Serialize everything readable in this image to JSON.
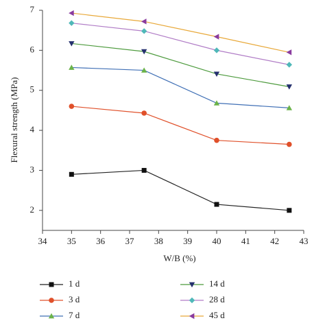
{
  "chart_data": {
    "type": "line",
    "x_label": "W/B (%)",
    "y_label": "Flexural strength (MPa)",
    "x": [
      35,
      37.5,
      40,
      42.5
    ],
    "xlim": [
      34,
      43
    ],
    "xticks": [
      34,
      35,
      36,
      37,
      38,
      39,
      40,
      41,
      42,
      43
    ],
    "ylim": [
      1.5,
      7
    ],
    "yticks": [
      2,
      3,
      4,
      5,
      6,
      7
    ],
    "series": [
      {
        "name": "1 d",
        "color": "#222222",
        "marker_color": "#111111",
        "marker": "square",
        "values": [
          2.9,
          3.0,
          2.15,
          2.0
        ]
      },
      {
        "name": "3 d",
        "color": "#e0502a",
        "marker_color": "#e0502a",
        "marker": "circle",
        "values": [
          4.6,
          4.43,
          3.75,
          3.65
        ]
      },
      {
        "name": "7 d",
        "color": "#3f6fb5",
        "marker_color": "#6bb34a",
        "marker": "triangle-up",
        "values": [
          5.57,
          5.5,
          4.68,
          4.56
        ]
      },
      {
        "name": "14 d",
        "color": "#4c9a3c",
        "marker_color": "#25306e",
        "marker": "triangle-down",
        "values": [
          6.17,
          5.97,
          5.41,
          5.09
        ]
      },
      {
        "name": "28 d",
        "color": "#b07cc6",
        "marker_color": "#4fb8b8",
        "marker": "diamond",
        "values": [
          6.68,
          6.48,
          6.0,
          5.64
        ]
      },
      {
        "name": "45 d",
        "color": "#e8a838",
        "marker_color": "#8a3b9e",
        "marker": "triangle-left",
        "values": [
          6.93,
          6.72,
          6.34,
          5.95
        ]
      }
    ]
  }
}
